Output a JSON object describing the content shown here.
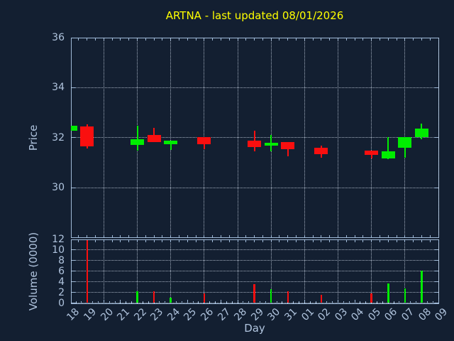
{
  "figure": {
    "title": "ARTNA - last updated 08/01/2026",
    "xlabel": "Day",
    "price_ylabel": "Price",
    "volume_ylabel": "Volume (0000)"
  },
  "colors": {
    "background": "#131f31",
    "axis": "#a0bad8",
    "tick_label": "#b0c4de",
    "grid": "#c9d4e3",
    "title": "#ffff00",
    "up": "#00ed00",
    "down": "#fa0f0f"
  },
  "chart_data": {
    "type": "candlestick+volume-bar",
    "title": "ARTNA - last updated 08/01/2026",
    "xlabel": "Day",
    "price_ylabel": "Price",
    "volume_ylabel": "Volume (0000)",
    "legend": "none",
    "grid": "dotted, price: every 2 price units, volume: every 2 units, vertical: every 2 days",
    "x_tick_labels": [
      "18",
      "19",
      "20",
      "21",
      "22",
      "23",
      "24",
      "25",
      "26",
      "27",
      "28",
      "29",
      "30",
      "31",
      "01",
      "02",
      "03",
      "04",
      "05",
      "06",
      "07",
      "08",
      "09"
    ],
    "x_gridline_days": [
      "20",
      "22",
      "24",
      "26",
      "28",
      "30",
      "01",
      "03",
      "05",
      "07",
      "09"
    ],
    "price_axis": {
      "ticks": [
        36,
        34,
        32,
        30
      ],
      "gridlines": [
        34,
        32,
        30
      ],
      "ylim": [
        28.0,
        36.0
      ]
    },
    "volume_axis": {
      "ticks": [
        12,
        10,
        8,
        6,
        4,
        2,
        0
      ],
      "gridlines": [
        10,
        8,
        6,
        4,
        2,
        0
      ],
      "ylim": [
        0,
        12
      ]
    },
    "candles": [
      {
        "day": "18",
        "open": 32.27,
        "high": 32.49,
        "low": 32.27,
        "close": 32.49,
        "direction": "up",
        "volume": 0.0
      },
      {
        "day": "19",
        "open": 32.46,
        "high": 32.54,
        "low": 31.56,
        "close": 31.65,
        "direction": "down",
        "volume": 11.9
      },
      {
        "day": "22",
        "open": 31.7,
        "high": 32.47,
        "low": 31.48,
        "close": 31.95,
        "direction": "up",
        "volume": 2.2
      },
      {
        "day": "23",
        "open": 32.12,
        "high": 32.38,
        "low": 31.81,
        "close": 31.81,
        "direction": "down",
        "volume": 2.2
      },
      {
        "day": "24",
        "open": 31.75,
        "high": 31.88,
        "low": 31.51,
        "close": 31.88,
        "direction": "up",
        "volume": 1.0
      },
      {
        "day": "26",
        "open": 32.03,
        "high": 32.03,
        "low": 31.53,
        "close": 31.75,
        "direction": "down",
        "volume": 1.8
      },
      {
        "day": "29",
        "open": 31.89,
        "high": 32.28,
        "low": 31.45,
        "close": 31.62,
        "direction": "down",
        "volume": 3.6
      },
      {
        "day": "30",
        "open": 31.68,
        "high": 32.11,
        "low": 31.45,
        "close": 31.79,
        "direction": "up",
        "volume": 2.6
      },
      {
        "day": "31",
        "open": 31.83,
        "high": 31.83,
        "low": 31.26,
        "close": 31.55,
        "direction": "down",
        "volume": 2.2
      },
      {
        "day": "02",
        "open": 31.6,
        "high": 31.67,
        "low": 31.21,
        "close": 31.34,
        "direction": "down",
        "volume": 1.5
      },
      {
        "day": "05",
        "open": 31.49,
        "high": 31.49,
        "low": 31.17,
        "close": 31.31,
        "direction": "down",
        "volume": 1.8
      },
      {
        "day": "06",
        "open": 31.18,
        "high": 32.02,
        "low": 31.13,
        "close": 31.46,
        "direction": "up",
        "volume": 3.7
      },
      {
        "day": "07",
        "open": 31.6,
        "high": 32.02,
        "low": 31.19,
        "close": 32.02,
        "direction": "up",
        "volume": 2.7
      },
      {
        "day": "08",
        "open": 32.02,
        "high": 32.55,
        "low": 31.93,
        "close": 32.37,
        "direction": "up",
        "volume": 6.1
      }
    ]
  }
}
